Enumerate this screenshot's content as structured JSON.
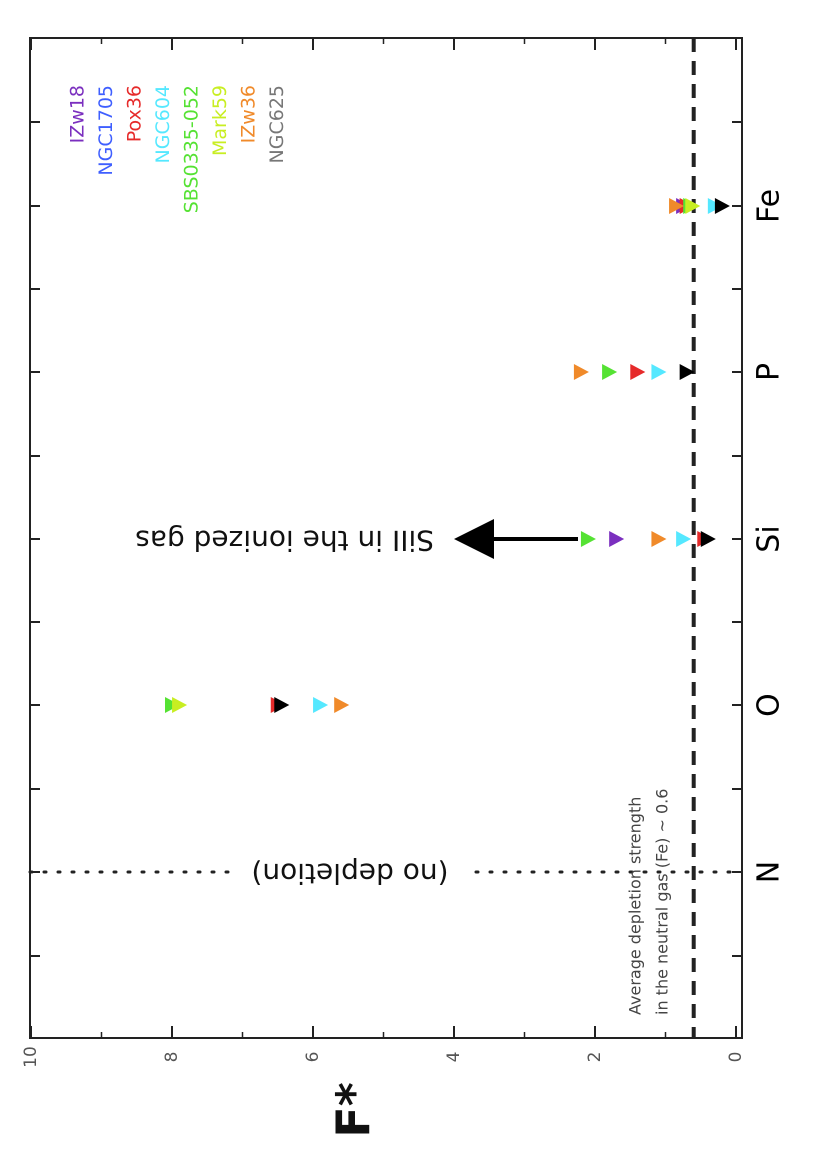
{
  "chart_data": {
    "type": "scatter",
    "ylabel": "F*",
    "ylim": [
      0,
      10
    ],
    "y_ticks": [
      "0",
      "2",
      "4",
      "6",
      "8",
      "10"
    ],
    "categories": [
      "N",
      "O",
      "Si",
      "P",
      "Fe"
    ],
    "markers": "triangle, upper limits",
    "legend_placement": "top-right",
    "series": [
      {
        "name": "IZw18",
        "color": "#7b2fbf",
        "values": {
          "Si": 1.7,
          "Fe": 0.75
        }
      },
      {
        "name": "NGC1705",
        "color": "#3f5fff",
        "values": {}
      },
      {
        "name": "Pox36",
        "color": "#e62a2a",
        "values": {
          "O": 6.5,
          "Si": 0.45,
          "P": 1.4,
          "Fe": 0.7
        }
      },
      {
        "name": "NGC604",
        "color": "#55e8ff",
        "values": {
          "O": 5.9,
          "Si": 0.75,
          "P": 1.1,
          "Fe": 0.3
        }
      },
      {
        "name": "SBS0335-052",
        "color": "#55e233",
        "values": {
          "O": 8.0,
          "Si": 2.1,
          "P": 1.8,
          "Fe": 0.65
        }
      },
      {
        "name": "Mark59",
        "color": "#c8ee22",
        "values": {
          "O": 7.9,
          "Fe": 0.62
        }
      },
      {
        "name": "IZw36",
        "color": "#f08a2a",
        "values": {
          "O": 5.6,
          "Si": 1.1,
          "P": 2.2,
          "Fe": 0.85
        }
      },
      {
        "name": "NGC625",
        "color": "#000000",
        "legend_color": "#777777",
        "values": {
          "O": 6.45,
          "Si": 0.4,
          "P": 0.7,
          "Fe": 0.2
        }
      }
    ],
    "reference_lines": [
      {
        "orientation": "horizontal",
        "y": 0.6,
        "style": "dashed"
      },
      {
        "orientation": "vertical",
        "category": "N",
        "style": "dotted"
      }
    ],
    "annotations": {
      "no_depletion": "(no depletion)",
      "sii_ionized": "SiII in the ionized gas",
      "avg_line1": "Average depletion strength",
      "avg_line2": "in the neutral gas (Fe) ~ 0.6"
    }
  }
}
